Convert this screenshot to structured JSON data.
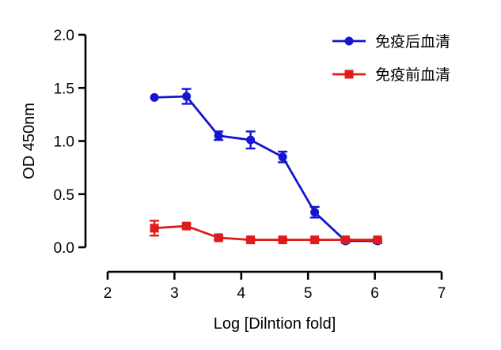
{
  "chart_data": {
    "type": "line",
    "title": "",
    "xlabel": "Log [Dilntion fold]",
    "ylabel": "OD 450nm",
    "xlim": [
      2,
      7
    ],
    "ylim": [
      0,
      2.0
    ],
    "xticks": [
      "2",
      "3",
      "4",
      "5",
      "6",
      "7"
    ],
    "yticks": [
      "0.0",
      "0.5",
      "1.0",
      "1.5",
      "2.0"
    ],
    "grid": false,
    "legend_position": "top-right",
    "series": [
      {
        "name": "免疫后血清",
        "color": "#1515d0",
        "marker": "circle",
        "x": [
          2.7,
          3.18,
          3.66,
          4.14,
          4.62,
          5.1,
          5.56,
          6.04
        ],
        "y": [
          1.41,
          1.42,
          1.05,
          1.01,
          0.85,
          0.33,
          0.06,
          0.06
        ],
        "error": [
          0,
          0.07,
          0.04,
          0.08,
          0.05,
          0.05,
          0.01,
          0.02
        ]
      },
      {
        "name": "免疫前血清",
        "color": "#e01b1b",
        "marker": "square",
        "x": [
          2.7,
          3.18,
          3.66,
          4.14,
          4.62,
          5.1,
          5.56,
          6.04
        ],
        "y": [
          0.18,
          0.2,
          0.09,
          0.07,
          0.07,
          0.07,
          0.07,
          0.07
        ],
        "error": [
          0.07,
          0.02,
          0.02,
          0.01,
          0.01,
          0.01,
          0.01,
          0.01
        ]
      }
    ]
  }
}
